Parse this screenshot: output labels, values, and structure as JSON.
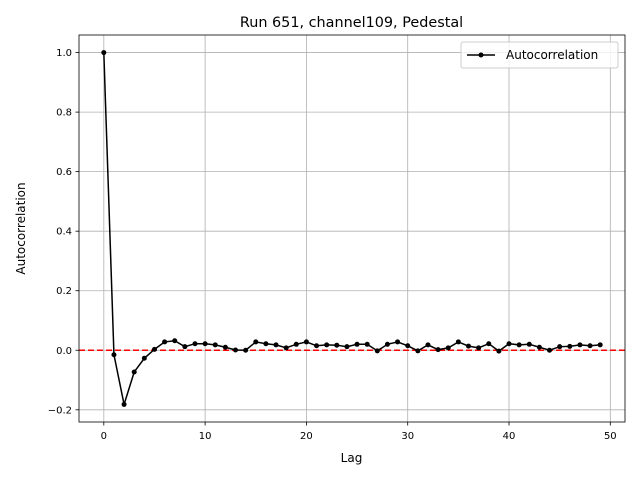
{
  "chart_data": {
    "type": "line",
    "title": "Run 651, channel109, Pedestal",
    "xlabel": "Lag",
    "ylabel": "Autocorrelation",
    "xlim": [
      -2.45,
      51.45
    ],
    "ylim": [
      -0.241,
      1.059
    ],
    "xticks": [
      0,
      10,
      20,
      30,
      40,
      50
    ],
    "xtick_labels": [
      "0",
      "10",
      "20",
      "30",
      "40",
      "50"
    ],
    "yticks": [
      -0.2,
      0.0,
      0.2,
      0.4,
      0.6,
      0.8,
      1.0
    ],
    "ytick_labels": [
      "−0.2",
      "0.0",
      "0.2",
      "0.4",
      "0.6",
      "0.8",
      "1.0"
    ],
    "grid": true,
    "legend_position": "top-right",
    "series": [
      {
        "name": "Autocorrelation",
        "color": "#000000",
        "marker": "circle",
        "x": [
          0,
          1,
          2,
          3,
          4,
          5,
          6,
          7,
          8,
          9,
          10,
          11,
          12,
          13,
          14,
          15,
          16,
          17,
          18,
          19,
          20,
          21,
          22,
          23,
          24,
          25,
          26,
          27,
          28,
          29,
          30,
          31,
          32,
          33,
          34,
          35,
          36,
          37,
          38,
          39,
          40,
          41,
          42,
          43,
          44,
          45,
          46,
          47,
          48,
          49
        ],
        "values": [
          1.0,
          -0.015,
          -0.182,
          -0.073,
          -0.027,
          0.003,
          0.028,
          0.032,
          0.012,
          0.022,
          0.022,
          0.018,
          0.01,
          0.001,
          0.0,
          0.028,
          0.022,
          0.018,
          0.008,
          0.02,
          0.028,
          0.015,
          0.018,
          0.017,
          0.012,
          0.02,
          0.02,
          -0.002,
          0.02,
          0.028,
          0.015,
          -0.002,
          0.018,
          0.002,
          0.008,
          0.028,
          0.014,
          0.008,
          0.022,
          -0.003,
          0.022,
          0.018,
          0.02,
          0.01,
          0.0,
          0.012,
          0.013,
          0.018,
          0.015,
          0.018
        ]
      }
    ],
    "reference_line": {
      "y": 0.0,
      "color": "#ff0000",
      "style": "dashed"
    }
  }
}
